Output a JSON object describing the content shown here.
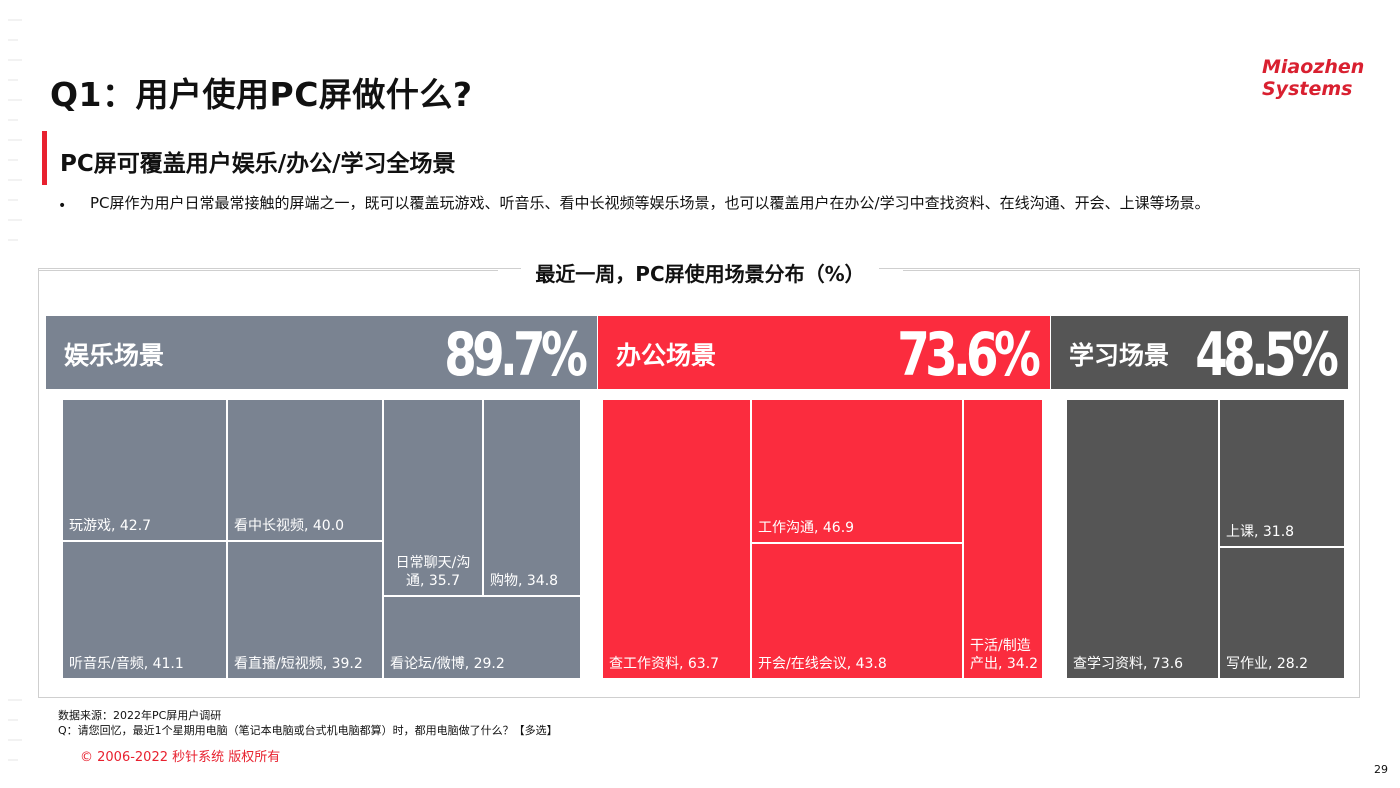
{
  "header": {
    "title": "Q1：用户使用PC屏做什么?",
    "subtitle": "PC屏可覆盖用户娱乐/办公/学习全场景",
    "bullet": "PC屏作为用户日常最常接触的屏端之一，既可以覆盖玩游戏、听音乐、看中长视频等娱乐场景，也可以覆盖用户在办公/学习中查找资料、在线沟通、开会、上课等场景。"
  },
  "logo": {
    "line1": "Miaozhen",
    "line2": "Systems",
    "mark": "®"
  },
  "colors": {
    "entertainment": "#7a8391",
    "office": "#fb2c3e",
    "study": "#555555",
    "accent": "#e8212f"
  },
  "chart_data": {
    "type": "treemap",
    "title": "最近一周，PC屏使用场景分布（%）",
    "unit": "%",
    "groups": [
      {
        "name": "娱乐场景",
        "value": 89.7,
        "value_label": "89.7%",
        "items": [
          {
            "label": "玩游戏, 42.7",
            "name": "玩游戏",
            "value": 42.7
          },
          {
            "label": "听音乐/音频, 41.1",
            "name": "听音乐/音频",
            "value": 41.1
          },
          {
            "label": "看中长视频, 40.0",
            "name": "看中长视频",
            "value": 40.0
          },
          {
            "label": "看直播/短视频, 39.2",
            "name": "看直播/短视频",
            "value": 39.2
          },
          {
            "label": "日常聊天/沟通, 35.7",
            "label_lines": [
              "日常聊天/沟",
              "通, 35.7"
            ],
            "name": "日常聊天/沟通",
            "value": 35.7
          },
          {
            "label": "购物, 34.8",
            "name": "购物",
            "value": 34.8
          },
          {
            "label": "看论坛/微博, 29.2",
            "name": "看论坛/微博",
            "value": 29.2
          }
        ]
      },
      {
        "name": "办公场景",
        "value": 73.6,
        "value_label": "73.6%",
        "items": [
          {
            "label": "查工作资料, 63.7",
            "name": "查工作资料",
            "value": 63.7
          },
          {
            "label": "工作沟通, 46.9",
            "name": "工作沟通",
            "value": 46.9
          },
          {
            "label": "开会/在线会议, 43.8",
            "name": "开会/在线会议",
            "value": 43.8
          },
          {
            "label": "干活/制造产出, 34.2",
            "label_lines": [
              "干活/制造",
              "产出, 34.2"
            ],
            "name": "干活/制造产出",
            "value": 34.2
          }
        ]
      },
      {
        "name": "学习场景",
        "value": 48.5,
        "value_label": "48.5%",
        "items": [
          {
            "label": "查学习资料, 73.6",
            "name": "查学习资料",
            "value": 73.6
          },
          {
            "label": "上课, 31.8",
            "name": "上课",
            "value": 31.8
          },
          {
            "label": "写作业, 28.2",
            "name": "写作业",
            "value": 28.2
          }
        ]
      }
    ]
  },
  "footer": {
    "source": "数据来源：2022年PC屏用户调研",
    "question": "Q：请您回忆，最近1个星期用电脑（笔记本电脑或台式机电脑都算）时，都用电脑做了什么？【多选】",
    "copyright": "© 2006-2022 秒针系统 版权所有",
    "page": "29"
  }
}
